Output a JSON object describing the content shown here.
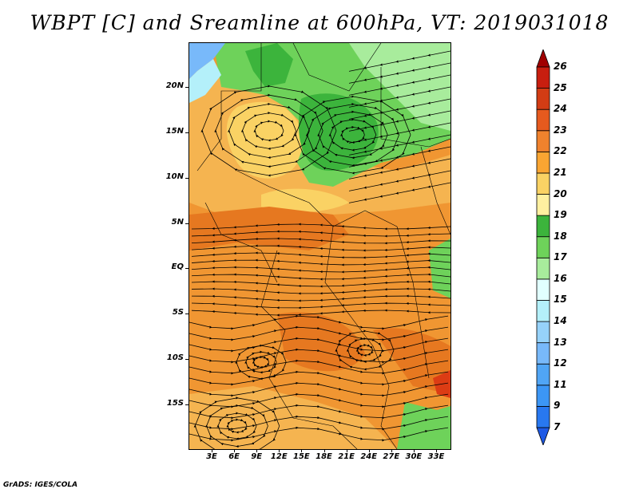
{
  "title": "WBPT [C] and Sreamline at 600hPa, VT: 2019031018",
  "footer": "GrADS: IGES/COLA",
  "lat_axis": {
    "labels": [
      "20N",
      "15N",
      "10N",
      "5N",
      "EQ",
      "5S",
      "10S",
      "15S"
    ],
    "values": [
      20,
      15,
      10,
      5,
      0,
      -5,
      -10,
      -15
    ]
  },
  "lon_axis": {
    "labels": [
      "3E",
      "6E",
      "9E",
      "12E",
      "15E",
      "18E",
      "21E",
      "24E",
      "27E",
      "30E",
      "33E"
    ],
    "values": [
      3,
      6,
      9,
      12,
      15,
      18,
      21,
      24,
      27,
      30,
      33
    ]
  },
  "colorbar": {
    "labels": [
      "7",
      "9",
      "11",
      "12",
      "13",
      "14",
      "15",
      "16",
      "17",
      "18",
      "19",
      "20",
      "21",
      "22",
      "23",
      "24",
      "25",
      "26"
    ],
    "colors": [
      "#1e5ae6",
      "#2878f0",
      "#3c96f5",
      "#50a5f5",
      "#78b9fa",
      "#96d2fa",
      "#b4f0fa",
      "#e1ffff",
      "#a8ec9c",
      "#6ed25a",
      "#3cb43c",
      "#fff0a0",
      "#fad264",
      "#faa532",
      "#f0822d",
      "#e65a1e",
      "#d23c14",
      "#c81e0f",
      "#a00000"
    ]
  },
  "colors": {
    "green_dark": "#3cb43c",
    "green_mid": "#6ed25a",
    "green_light": "#a8ec9c",
    "blue_light": "#78b9fa",
    "yellow": "#fad264",
    "orange_light": "#f5b450",
    "orange": "#f09632",
    "orange_dark": "#e67820",
    "red": "#dc3c14"
  }
}
